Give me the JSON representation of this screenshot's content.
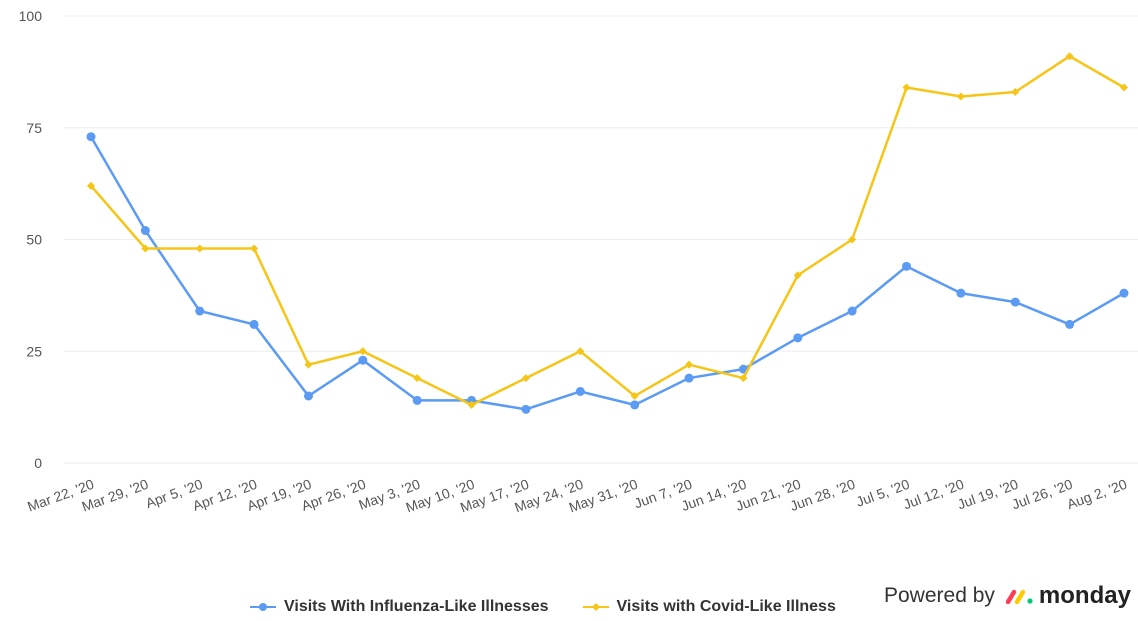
{
  "chart_data": {
    "type": "line",
    "title": "",
    "xlabel": "",
    "ylabel": "",
    "ylim": [
      0,
      100
    ],
    "yticks": [
      "0",
      "25",
      "50",
      "75",
      "100"
    ],
    "grid": true,
    "legend_position": "bottom",
    "categories": [
      "Mar 22, '20",
      "Mar 29, '20",
      "Apr 5, '20",
      "Apr 12, '20",
      "Apr 19, '20",
      "Apr 26, '20",
      "May 3, '20",
      "May 10, '20",
      "May 17, '20",
      "May 24, '20",
      "May 31, '20",
      "Jun 7, '20",
      "Jun 14, '20",
      "Jun 21, '20",
      "Jun 28, '20",
      "Jul 5, '20",
      "Jul 12, '20",
      "Jul 19, '20",
      "Jul 26, '20",
      "Aug 2, '20"
    ],
    "series": [
      {
        "name": "Visits With Influenza-Like Illnesses",
        "color": "#5b9bf4",
        "marker": "circle",
        "values": [
          73,
          52,
          34,
          31,
          15,
          23,
          14,
          14,
          12,
          16,
          13,
          19,
          21,
          28,
          34,
          44,
          38,
          36,
          31,
          38
        ]
      },
      {
        "name": "Visits with Covid-Like Illness",
        "color": "#f5c518",
        "marker": "diamond",
        "values": [
          62,
          48,
          48,
          48,
          22,
          25,
          19,
          13,
          19,
          25,
          15,
          22,
          19,
          42,
          50,
          84,
          82,
          83,
          91,
          84
        ]
      }
    ]
  },
  "watermark": {
    "powered_by": "Powered by",
    "logo_text": "monday",
    "logo_colors": [
      "#ff3d57",
      "#ffcb00",
      "#00ca72"
    ]
  }
}
